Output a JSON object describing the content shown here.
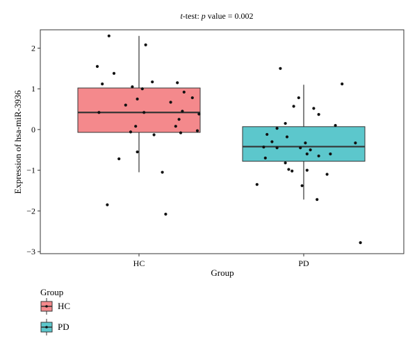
{
  "chart_data": {
    "type": "boxplot",
    "title_prefix": "t",
    "title_mid": "-test: ",
    "title_p": "p",
    "title_suffix": " value = 0.002",
    "xlabel": "Group",
    "ylabel": "Expression of hsa-miR-3936",
    "categories": [
      "HC",
      "PD"
    ],
    "ylim": [
      -3.05,
      2.45
    ],
    "yticks": [
      -3,
      -2,
      -1,
      0,
      1,
      2
    ],
    "ytick_labels": [
      "−3",
      "−2",
      "−1",
      "0",
      "1",
      "2"
    ],
    "grid": false,
    "legend": {
      "title": "Group",
      "placement": "bottom-left",
      "entries": [
        "HC",
        "PD"
      ]
    },
    "colors": {
      "HC": "#F4898C",
      "PD": "#5CC7CC",
      "outline": "#333333",
      "median": "#333333",
      "points": "#111111"
    },
    "series": [
      {
        "name": "HC",
        "box": {
          "q1": -0.07,
          "median": 0.42,
          "q3": 1.02,
          "whisker_low": -1.05,
          "whisker_high": 2.3
        },
        "points": [
          [
            -0.18,
            2.3
          ],
          [
            0.04,
            2.08
          ],
          [
            -0.25,
            1.55
          ],
          [
            -0.15,
            1.38
          ],
          [
            0.08,
            1.17
          ],
          [
            0.23,
            1.15
          ],
          [
            -0.22,
            1.12
          ],
          [
            -0.04,
            1.05
          ],
          [
            0.02,
            1.0
          ],
          [
            0.27,
            0.92
          ],
          [
            0.32,
            0.78
          ],
          [
            -0.01,
            0.75
          ],
          [
            0.19,
            0.67
          ],
          [
            -0.08,
            0.6
          ],
          [
            0.26,
            0.45
          ],
          [
            -0.24,
            0.42
          ],
          [
            0.03,
            0.42
          ],
          [
            0.36,
            0.38
          ],
          [
            0.24,
            0.25
          ],
          [
            0.22,
            0.08
          ],
          [
            -0.02,
            0.08
          ],
          [
            0.35,
            -0.03
          ],
          [
            -0.05,
            -0.06
          ],
          [
            0.09,
            -0.13
          ],
          [
            0.25,
            -0.08
          ],
          [
            -0.01,
            -0.55
          ],
          [
            -0.12,
            -0.72
          ],
          [
            0.14,
            -1.05
          ],
          [
            -0.19,
            -1.85
          ],
          [
            0.16,
            -2.08
          ]
        ]
      },
      {
        "name": "PD",
        "box": {
          "q1": -0.78,
          "median": -0.42,
          "q3": 0.07,
          "whisker_low": -1.72,
          "whisker_high": 1.1
        },
        "points": [
          [
            -0.14,
            1.5
          ],
          [
            0.23,
            1.12
          ],
          [
            -0.03,
            0.78
          ],
          [
            -0.06,
            0.57
          ],
          [
            0.06,
            0.52
          ],
          [
            0.09,
            0.37
          ],
          [
            -0.11,
            0.15
          ],
          [
            0.19,
            0.1
          ],
          [
            -0.16,
            0.03
          ],
          [
            -0.22,
            -0.12
          ],
          [
            -0.1,
            -0.18
          ],
          [
            -0.19,
            -0.3
          ],
          [
            0.01,
            -0.33
          ],
          [
            0.31,
            -0.33
          ],
          [
            -0.24,
            -0.43
          ],
          [
            -0.16,
            -0.45
          ],
          [
            -0.02,
            -0.45
          ],
          [
            0.04,
            -0.5
          ],
          [
            0.02,
            -0.6
          ],
          [
            0.09,
            -0.65
          ],
          [
            0.16,
            -0.6
          ],
          [
            -0.23,
            -0.7
          ],
          [
            -0.11,
            -0.82
          ],
          [
            -0.09,
            -0.98
          ],
          [
            0.02,
            -1.0
          ],
          [
            -0.07,
            -1.02
          ],
          [
            0.14,
            -1.1
          ],
          [
            -0.28,
            -1.35
          ],
          [
            -0.01,
            -1.38
          ],
          [
            0.08,
            -1.72
          ],
          [
            0.34,
            -2.78
          ]
        ]
      }
    ]
  }
}
